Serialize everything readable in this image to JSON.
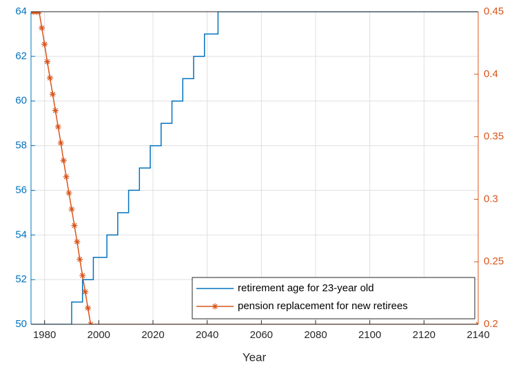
{
  "chart_data": {
    "type": "line",
    "xlabel": "Year",
    "xlim": [
      1975,
      2140
    ],
    "xticks": [
      1980,
      2000,
      2020,
      2040,
      2060,
      2080,
      2100,
      2120,
      2140
    ],
    "ylim": [
      50,
      64
    ],
    "yticks": [
      50,
      52,
      54,
      56,
      58,
      60,
      62,
      64
    ],
    "y2lim": [
      0.2,
      0.45
    ],
    "y2ticks": [
      0.2,
      0.25,
      0.3,
      0.35,
      0.4,
      0.45
    ],
    "grid": true,
    "legend": "southeast",
    "series": [
      {
        "name": "retirement age for 23-year old",
        "color": "#0072BD",
        "axis": "y",
        "x": [
          1975,
          1990,
          1990,
          1994,
          1994,
          1998,
          1998,
          2003,
          2003,
          2007,
          2007,
          2011,
          2011,
          2015,
          2015,
          2019,
          2019,
          2023,
          2023,
          2027,
          2027,
          2031,
          2031,
          2035,
          2035,
          2039,
          2039,
          2044,
          2044,
          2140
        ],
        "values": [
          50,
          50,
          51,
          51,
          52,
          52,
          53,
          53,
          54,
          54,
          55,
          55,
          56,
          56,
          57,
          57,
          58,
          58,
          59,
          59,
          60,
          60,
          61,
          61,
          62,
          62,
          63,
          63,
          64,
          64
        ]
      },
      {
        "name": "pension replacement for new retirees",
        "color": "#D95319",
        "axis": "y2",
        "marker": "asterisk",
        "x": [
          1975,
          1976,
          1977,
          1978,
          1979,
          1980,
          1981,
          1982,
          1983,
          1984,
          1985,
          1986,
          1987,
          1988,
          1989,
          1990,
          1991,
          1992,
          1993,
          1994,
          1995,
          1996,
          1997,
          2140
        ],
        "values": [
          0.45,
          0.45,
          0.45,
          0.45,
          0.437,
          0.424,
          0.41,
          0.397,
          0.384,
          0.371,
          0.358,
          0.345,
          0.331,
          0.318,
          0.305,
          0.292,
          0.279,
          0.266,
          0.252,
          0.239,
          0.226,
          0.213,
          0.2,
          0.2
        ]
      }
    ]
  }
}
